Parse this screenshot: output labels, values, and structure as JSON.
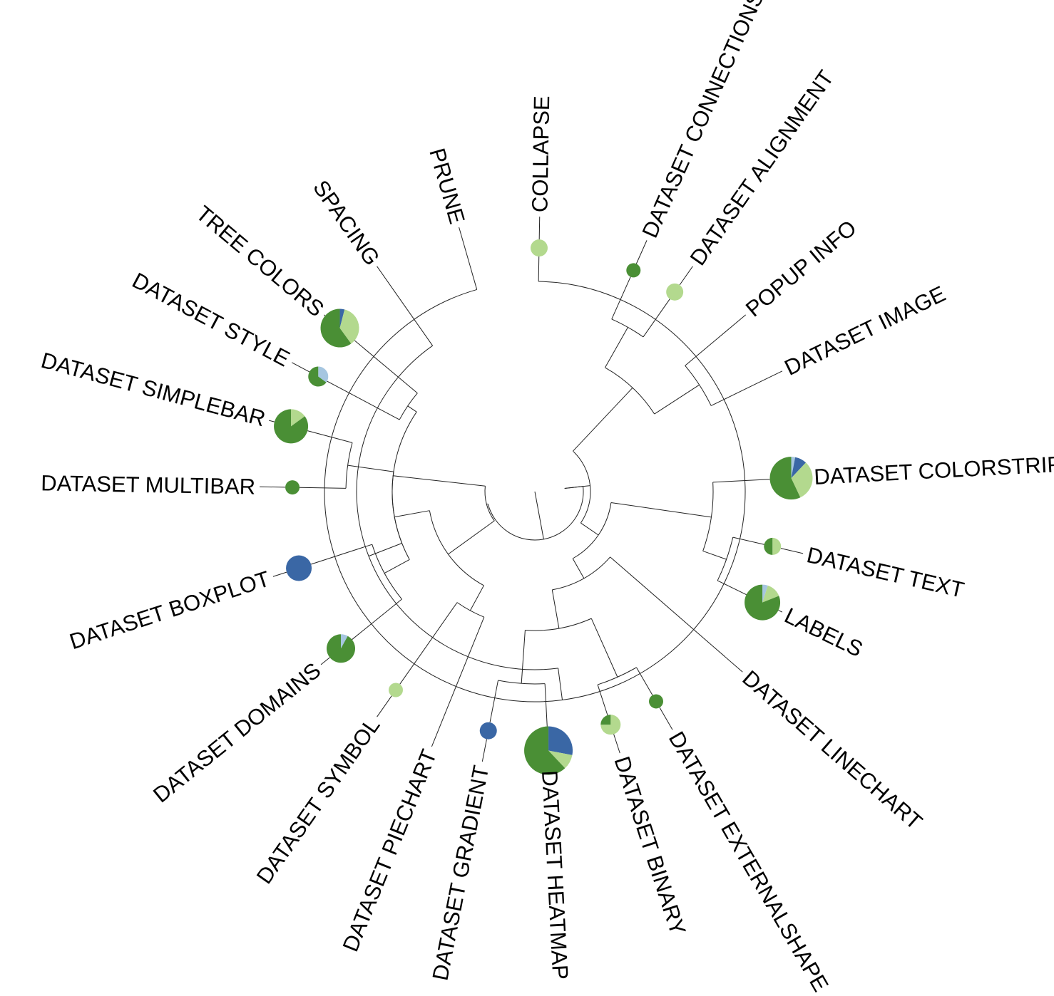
{
  "colors": {
    "dark_green": "#4a8f35",
    "light_green": "#b3d98e",
    "dark_blue": "#3a67a5",
    "light_blue": "#a6c6e0"
  },
  "leaves": [
    {
      "id": "collapse",
      "label": "COLLAPSE",
      "pie": [
        {
          "color": "light_green",
          "value": 1
        }
      ]
    },
    {
      "id": "dataset-connections",
      "label": "DATASET CONNECTIONS",
      "pie": [
        {
          "color": "dark_green",
          "value": 1
        }
      ]
    },
    {
      "id": "dataset-alignment",
      "label": "DATASET ALIGNMENT",
      "pie": [
        {
          "color": "light_green",
          "value": 1
        }
      ]
    },
    {
      "id": "popup-info",
      "label": "POPUP INFO",
      "pie": []
    },
    {
      "id": "dataset-image",
      "label": "DATASET IMAGE",
      "pie": []
    },
    {
      "id": "dataset-colorstrip",
      "label": "DATASET COLORSTRIP",
      "pie": [
        {
          "color": "light_blue",
          "value": 0.03
        },
        {
          "color": "dark_blue",
          "value": 0.09
        },
        {
          "color": "light_green",
          "value": 0.31
        },
        {
          "color": "dark_green",
          "value": 0.57
        }
      ]
    },
    {
      "id": "dataset-text",
      "label": "DATASET TEXT",
      "pie": [
        {
          "color": "light_green",
          "value": 0.5
        },
        {
          "color": "dark_green",
          "value": 0.5
        }
      ]
    },
    {
      "id": "labels",
      "label": "LABELS",
      "pie": [
        {
          "color": "light_blue",
          "value": 0.05
        },
        {
          "color": "light_green",
          "value": 0.14
        },
        {
          "color": "dark_green",
          "value": 0.81
        }
      ]
    },
    {
      "id": "dataset-linechart",
      "label": "DATASET LINECHART",
      "pie": []
    },
    {
      "id": "dataset-externalshape",
      "label": "DATASET EXTERNALSHAPE",
      "pie": [
        {
          "color": "dark_green",
          "value": 1
        }
      ]
    },
    {
      "id": "dataset-binary",
      "label": "DATASET BINARY",
      "pie": [
        {
          "color": "light_green",
          "value": 0.75
        },
        {
          "color": "dark_green",
          "value": 0.25
        }
      ]
    },
    {
      "id": "dataset-heatmap",
      "label": "DATASET HEATMAP",
      "pie": [
        {
          "color": "dark_blue",
          "value": 0.28
        },
        {
          "color": "light_green",
          "value": 0.1
        },
        {
          "color": "dark_green",
          "value": 0.62
        }
      ]
    },
    {
      "id": "dataset-gradient",
      "label": "DATASET GRADIENT",
      "pie": [
        {
          "color": "dark_blue",
          "value": 1
        }
      ]
    },
    {
      "id": "dataset-piechart",
      "label": "DATASET PIECHART",
      "pie": []
    },
    {
      "id": "dataset-symbol",
      "label": "DATASET SYMBOL",
      "pie": [
        {
          "color": "light_green",
          "value": 1
        }
      ]
    },
    {
      "id": "dataset-domains",
      "label": "DATASET DOMAINS",
      "pie": [
        {
          "color": "light_blue",
          "value": 0.08
        },
        {
          "color": "dark_green",
          "value": 0.92
        }
      ]
    },
    {
      "id": "dataset-boxplot",
      "label": "DATASET BOXPLOT",
      "pie": [
        {
          "color": "dark_blue",
          "value": 1
        }
      ]
    },
    {
      "id": "dataset-multibar",
      "label": "DATASET MULTIBAR",
      "pie": [
        {
          "color": "dark_green",
          "value": 1
        }
      ]
    },
    {
      "id": "dataset-simplebar",
      "label": "DATASET SIMPLEBAR",
      "pie": [
        {
          "color": "light_green",
          "value": 0.15
        },
        {
          "color": "dark_green",
          "value": 0.85
        }
      ]
    },
    {
      "id": "dataset-style",
      "label": "DATASET STYLE",
      "pie": [
        {
          "color": "light_blue",
          "value": 0.35
        },
        {
          "color": "dark_green",
          "value": 0.65
        }
      ]
    },
    {
      "id": "tree-colors",
      "label": "TREE COLORS",
      "pie": [
        {
          "color": "dark_blue",
          "value": 0.04
        },
        {
          "color": "light_green",
          "value": 0.36
        },
        {
          "color": "dark_green",
          "value": 0.6
        }
      ]
    },
    {
      "id": "spacing",
      "label": "SPACING",
      "pie": []
    },
    {
      "id": "prune",
      "label": "PRUNE",
      "pie": []
    }
  ]
}
